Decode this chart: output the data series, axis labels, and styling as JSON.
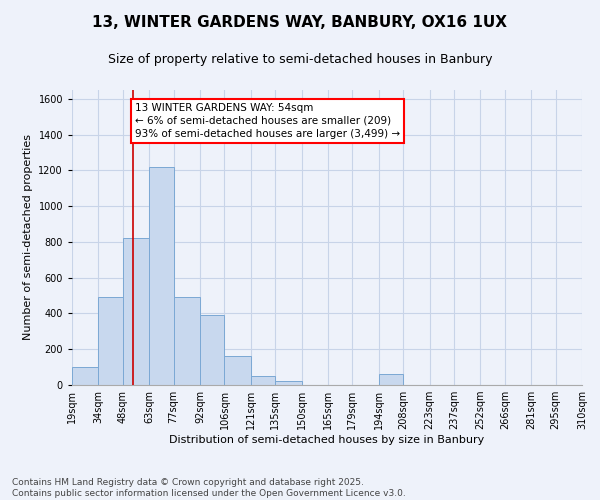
{
  "title1": "13, WINTER GARDENS WAY, BANBURY, OX16 1UX",
  "title2": "Size of property relative to semi-detached houses in Banbury",
  "xlabel": "Distribution of semi-detached houses by size in Banbury",
  "ylabel": "Number of semi-detached properties",
  "bar_color": "#c8d8ee",
  "bar_edge_color": "#7ba8d4",
  "grid_color": "#c8d4e8",
  "bg_color": "#eef2fa",
  "annotation_text": "13 WINTER GARDENS WAY: 54sqm\n← 6% of semi-detached houses are smaller (209)\n93% of semi-detached houses are larger (3,499) →",
  "vline_x": 54,
  "vline_color": "#cc0000",
  "bins": [
    19,
    34,
    48,
    63,
    77,
    92,
    106,
    121,
    135,
    150,
    165,
    179,
    194,
    208,
    223,
    237,
    252,
    266,
    281,
    295,
    310
  ],
  "bin_labels": [
    "19sqm",
    "34sqm",
    "48sqm",
    "63sqm",
    "77sqm",
    "92sqm",
    "106sqm",
    "121sqm",
    "135sqm",
    "150sqm",
    "165sqm",
    "179sqm",
    "194sqm",
    "208sqm",
    "223sqm",
    "237sqm",
    "252sqm",
    "266sqm",
    "281sqm",
    "295sqm",
    "310sqm"
  ],
  "bar_heights": [
    100,
    490,
    820,
    1220,
    490,
    390,
    160,
    50,
    20,
    0,
    0,
    0,
    60,
    0,
    0,
    0,
    0,
    0,
    0,
    0
  ],
  "ylim": [
    0,
    1650
  ],
  "yticks": [
    0,
    200,
    400,
    600,
    800,
    1000,
    1200,
    1400,
    1600
  ],
  "footnote": "Contains HM Land Registry data © Crown copyright and database right 2025.\nContains public sector information licensed under the Open Government Licence v3.0.",
  "title_fontsize": 11,
  "subtitle_fontsize": 9,
  "axis_label_fontsize": 8,
  "tick_fontsize": 7,
  "footnote_fontsize": 6.5,
  "annotation_fontsize": 7.5
}
